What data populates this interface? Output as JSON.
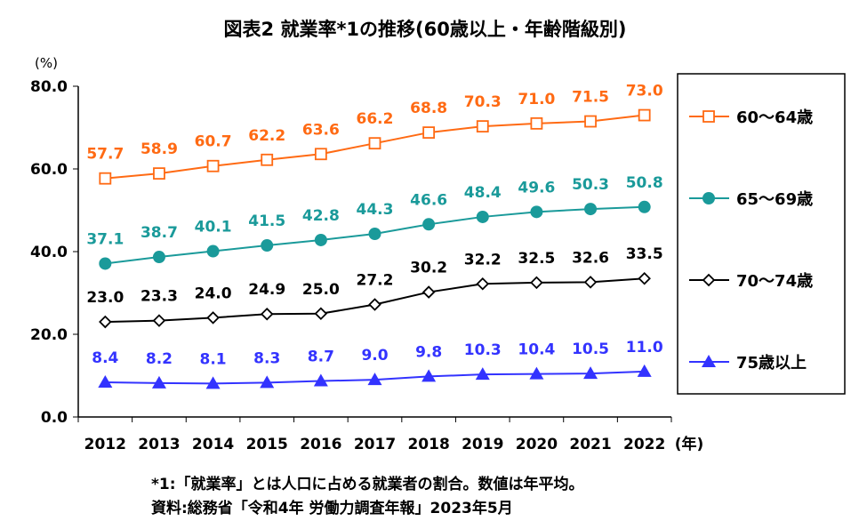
{
  "chart_data": {
    "type": "line",
    "title": "図表2  就業率*1の推移(60歳以上・年齢階級別)",
    "ylabel": "(%)",
    "xlabel": "(年)",
    "ylim": [
      0,
      80
    ],
    "yticks": [
      "0.0",
      "20.0",
      "40.0",
      "60.0",
      "80.0"
    ],
    "categories": [
      "2012",
      "2013",
      "2014",
      "2015",
      "2016",
      "2017",
      "2018",
      "2019",
      "2020",
      "2021",
      "2022"
    ],
    "legend_position": "right",
    "series": [
      {
        "name": "60〜64歳",
        "color": "#FF6A13",
        "marker": "square-open",
        "values": [
          57.7,
          58.9,
          60.7,
          62.2,
          63.6,
          66.2,
          68.8,
          70.3,
          71.0,
          71.5,
          73.0
        ]
      },
      {
        "name": "65〜69歳",
        "color": "#1A9A9A",
        "marker": "circle-filled",
        "values": [
          37.1,
          38.7,
          40.1,
          41.5,
          42.8,
          44.3,
          46.6,
          48.4,
          49.6,
          50.3,
          50.8
        ]
      },
      {
        "name": "70〜74歳",
        "color": "#000000",
        "marker": "diamond-open",
        "values": [
          23.0,
          23.3,
          24.0,
          24.9,
          25.0,
          27.2,
          30.2,
          32.2,
          32.5,
          32.6,
          33.5
        ]
      },
      {
        "name": "75歳以上",
        "color": "#3333FF",
        "marker": "triangle-filled",
        "values": [
          8.4,
          8.2,
          8.1,
          8.3,
          8.7,
          9.0,
          9.8,
          10.3,
          10.4,
          10.5,
          11.0
        ]
      }
    ],
    "notes": [
      "*1:「就業率」とは人口に占める就業者の割合。数値は年平均。",
      "資料:総務省「令和4年  労働力調査年報」2023年5月"
    ]
  }
}
